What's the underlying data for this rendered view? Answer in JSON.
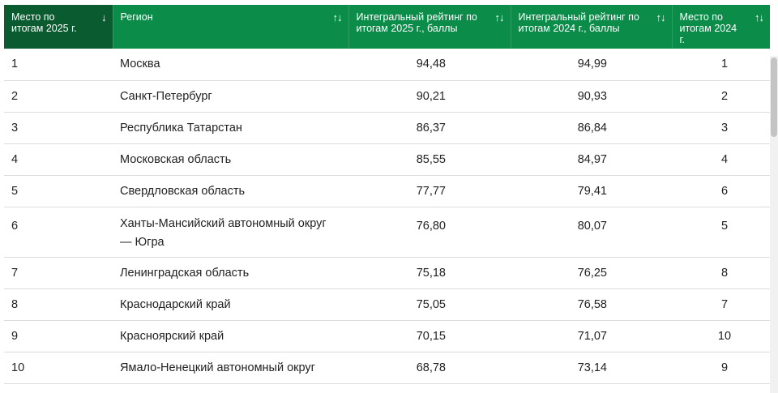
{
  "headers": [
    {
      "label": "Место по итогам 2025 г.",
      "sort": "↓"
    },
    {
      "label": "Регион",
      "sort": "↑↓"
    },
    {
      "label": "Интегральный рейтинг по итогам 2025 г., баллы",
      "sort": "↑↓"
    },
    {
      "label": "Интегральный рейтинг по итогам 2024 г., баллы",
      "sort": "↑↓"
    },
    {
      "label": "Место по итогам 2024 г.",
      "sort": "↑↓"
    }
  ],
  "rows": [
    {
      "place2025": "1",
      "region": "Москва",
      "score2025": "94,48",
      "score2024": "94,99",
      "place2024": "1"
    },
    {
      "place2025": "2",
      "region": "Санкт-Петербург",
      "score2025": "90,21",
      "score2024": "90,93",
      "place2024": "2"
    },
    {
      "place2025": "3",
      "region": "Республика Татарстан",
      "score2025": "86,37",
      "score2024": "86,84",
      "place2024": "3"
    },
    {
      "place2025": "4",
      "region": "Московская область",
      "score2025": "85,55",
      "score2024": "84,97",
      "place2024": "4"
    },
    {
      "place2025": "5",
      "region": "Свердловская область",
      "score2025": "77,77",
      "score2024": "79,41",
      "place2024": "6"
    },
    {
      "place2025": "6",
      "region": "Ханты-Мансийский автономный округ — Югра",
      "score2025": "76,80",
      "score2024": "80,07",
      "place2024": "5"
    },
    {
      "place2025": "7",
      "region": "Ленинградская область",
      "score2025": "75,18",
      "score2024": "76,25",
      "place2024": "8"
    },
    {
      "place2025": "8",
      "region": "Краснодарский край",
      "score2025": "75,05",
      "score2024": "76,58",
      "place2024": "7"
    },
    {
      "place2025": "9",
      "region": "Красноярский край",
      "score2025": "70,15",
      "score2024": "71,07",
      "place2024": "10"
    },
    {
      "place2025": "10",
      "region": "Ямало-Ненецкий автономный округ",
      "score2025": "68,78",
      "score2024": "73,14",
      "place2024": "9"
    }
  ],
  "colors": {
    "header_green": "#0c8c49",
    "header_active": "#0a5b30"
  }
}
